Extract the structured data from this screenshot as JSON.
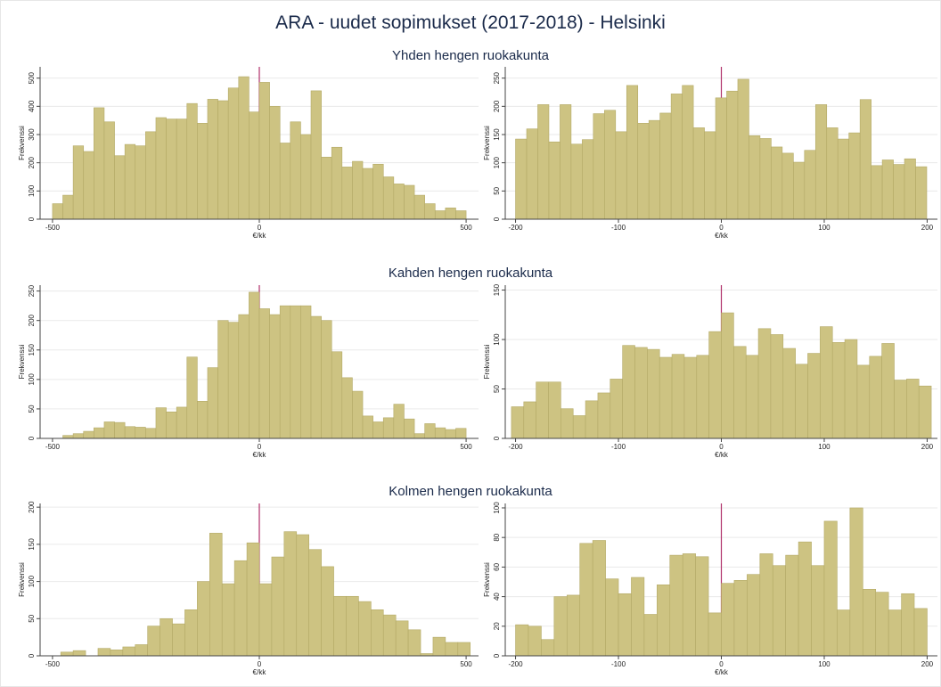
{
  "title": "ARA - uudet sopimukset (2017-2018) - Helsinki",
  "row_titles": [
    "Yhden hengen ruokakunta",
    "Kahden hengen ruokakunta",
    "Kolmen hengen ruokakunta"
  ],
  "chart_data": [
    {
      "type": "histogram",
      "xlabel": "€/kk",
      "ylabel": "Frekvenssi",
      "color": "#cdc382",
      "vline": 0,
      "vline_color": "#b0306a",
      "grid": true,
      "xlim": [
        -530,
        530
      ],
      "ylim": [
        0,
        540
      ],
      "xticks": [
        -500,
        0,
        500
      ],
      "yticks": [
        0,
        100,
        200,
        300,
        400,
        500
      ],
      "bins": [
        -500,
        -475,
        -450,
        -425,
        -400,
        -375,
        -350,
        -325,
        -300,
        -275,
        -250,
        -225,
        -200,
        -175,
        -150,
        -125,
        -100,
        -75,
        -50,
        -25,
        0,
        25,
        50,
        75,
        100,
        125,
        150,
        175,
        200,
        225,
        250,
        275,
        300,
        325,
        350,
        375,
        400,
        425,
        450,
        475,
        500
      ],
      "values": [
        55,
        85,
        260,
        240,
        395,
        345,
        225,
        265,
        260,
        310,
        360,
        355,
        355,
        410,
        340,
        425,
        420,
        465,
        505,
        380,
        485,
        400,
        270,
        345,
        300,
        455,
        220,
        255,
        185,
        205,
        180,
        195,
        150,
        125,
        120,
        85,
        55,
        30,
        40,
        30
      ]
    },
    {
      "type": "histogram",
      "xlabel": "€/kk",
      "ylabel": "Frekvenssi",
      "color": "#cdc382",
      "vline": 0,
      "vline_color": "#b0306a",
      "grid": true,
      "xlim": [
        -210,
        210
      ],
      "ylim": [
        0,
        270
      ],
      "xticks": [
        -200,
        -100,
        0,
        100,
        200
      ],
      "yticks": [
        0,
        50,
        100,
        150,
        200,
        250
      ],
      "bins": [
        -200,
        -189.2,
        -178.4,
        -167.6,
        -156.8,
        -146,
        -135.2,
        -124.4,
        -113.6,
        -102.8,
        -92,
        -81.2,
        -70.4,
        -59.6,
        -48.8,
        -38,
        -27.2,
        -16.4,
        -5.6,
        5.2,
        16,
        26.8,
        37.6,
        48.4,
        59.2,
        70,
        80.8,
        91.6,
        102.4,
        113.2,
        124,
        134.8,
        145.6,
        156.4,
        167.2,
        178,
        188.8,
        199.6
      ],
      "values": [
        142,
        160,
        203,
        137,
        203,
        133,
        141,
        187,
        193,
        155,
        237,
        170,
        175,
        188,
        222,
        237,
        162,
        155,
        215,
        227,
        248,
        148,
        143,
        128,
        117,
        101,
        122,
        203,
        162,
        142,
        153,
        212,
        95,
        105,
        97,
        107,
        93
      ]
    },
    {
      "type": "histogram",
      "xlabel": "€/kk",
      "ylabel": "Frekvenssi",
      "color": "#cdc382",
      "vline": 0,
      "vline_color": "#b0306a",
      "grid": true,
      "xlim": [
        -530,
        530
      ],
      "ylim": [
        0,
        260
      ],
      "xticks": [
        -500,
        0,
        500
      ],
      "yticks": [
        0,
        50,
        100,
        150,
        200,
        250
      ],
      "bins": [
        -500,
        -475,
        -450,
        -425,
        -400,
        -375,
        -350,
        -325,
        -300,
        -275,
        -250,
        -225,
        -200,
        -175,
        -150,
        -125,
        -100,
        -75,
        -50,
        -25,
        0,
        25,
        50,
        75,
        100,
        125,
        150,
        175,
        200,
        225,
        250,
        275,
        300,
        325,
        350,
        375,
        400,
        425,
        450,
        475,
        500
      ],
      "values": [
        0,
        5,
        8,
        12,
        18,
        28,
        27,
        20,
        19,
        17,
        52,
        45,
        53,
        138,
        63,
        120,
        200,
        197,
        210,
        248,
        220,
        210,
        225,
        225,
        225,
        207,
        200,
        147,
        103,
        80,
        38,
        28,
        35,
        58,
        33,
        8,
        25,
        18,
        15,
        17
      ]
    },
    {
      "type": "histogram",
      "xlabel": "€/kk",
      "ylabel": "Frekvenssi",
      "color": "#cdc382",
      "vline": 0,
      "vline_color": "#b0306a",
      "grid": true,
      "xlim": [
        -210,
        210
      ],
      "ylim": [
        0,
        155
      ],
      "xticks": [
        -200,
        -100,
        0,
        100,
        200
      ],
      "yticks": [
        0,
        50,
        100,
        150
      ],
      "bins": [
        -204,
        -192,
        -180,
        -168,
        -156,
        -144,
        -132,
        -120,
        -108,
        -96,
        -84,
        -72,
        -60,
        -48,
        -36,
        -24,
        -12,
        0,
        12,
        24,
        36,
        48,
        60,
        72,
        84,
        96,
        108,
        120,
        132,
        144,
        156,
        168,
        180,
        192,
        204
      ],
      "values": [
        32,
        37,
        57,
        57,
        30,
        23,
        38,
        46,
        60,
        94,
        92,
        90,
        82,
        85,
        82,
        84,
        108,
        127,
        93,
        84,
        111,
        105,
        91,
        75,
        86,
        113,
        97,
        100,
        74,
        83,
        96,
        59,
        60,
        53
      ]
    },
    {
      "type": "histogram",
      "xlabel": "€/kk",
      "ylabel": "Frekvenssi",
      "color": "#cdc382",
      "vline": 0,
      "vline_color": "#b0306a",
      "grid": true,
      "xlim": [
        -530,
        530
      ],
      "ylim": [
        0,
        205
      ],
      "xticks": [
        -500,
        0,
        500
      ],
      "yticks": [
        0,
        50,
        100,
        150,
        200
      ],
      "bins": [
        -510,
        -480,
        -450,
        -420,
        -390,
        -360,
        -330,
        -300,
        -270,
        -240,
        -210,
        -180,
        -150,
        -120,
        -90,
        -60,
        -30,
        0,
        30,
        60,
        90,
        120,
        150,
        180,
        210,
        240,
        270,
        300,
        330,
        360,
        390,
        420,
        450,
        480,
        510
      ],
      "values": [
        0,
        5,
        7,
        0,
        10,
        8,
        12,
        15,
        40,
        50,
        43,
        62,
        100,
        165,
        97,
        128,
        152,
        97,
        133,
        167,
        163,
        143,
        120,
        80,
        80,
        73,
        62,
        55,
        47,
        35,
        3,
        25,
        18,
        18
      ]
    },
    {
      "type": "histogram",
      "xlabel": "€/kk",
      "ylabel": "Frekvenssi",
      "color": "#cdc382",
      "vline": 0,
      "vline_color": "#b0306a",
      "grid": true,
      "xlim": [
        -210,
        210
      ],
      "ylim": [
        0,
        103
      ],
      "xticks": [
        -200,
        -100,
        0,
        100,
        200
      ],
      "yticks": [
        0,
        20,
        40,
        60,
        80,
        100
      ],
      "bins": [
        -200,
        -187.5,
        -175,
        -162.5,
        -150,
        -137.5,
        -125,
        -112.5,
        -100,
        -87.5,
        -75,
        -62.5,
        -50,
        -37.5,
        -25,
        -12.5,
        0,
        12.5,
        25,
        37.5,
        50,
        62.5,
        75,
        87.5,
        100,
        112.5,
        125,
        137.5,
        150,
        162.5,
        175,
        187.5,
        200
      ],
      "values": [
        21,
        20,
        11,
        40,
        41,
        76,
        78,
        52,
        42,
        53,
        28,
        48,
        68,
        69,
        67,
        29,
        49,
        51,
        55,
        69,
        61,
        68,
        77,
        61,
        91,
        31,
        100,
        45,
        43,
        31,
        42,
        32
      ]
    }
  ]
}
